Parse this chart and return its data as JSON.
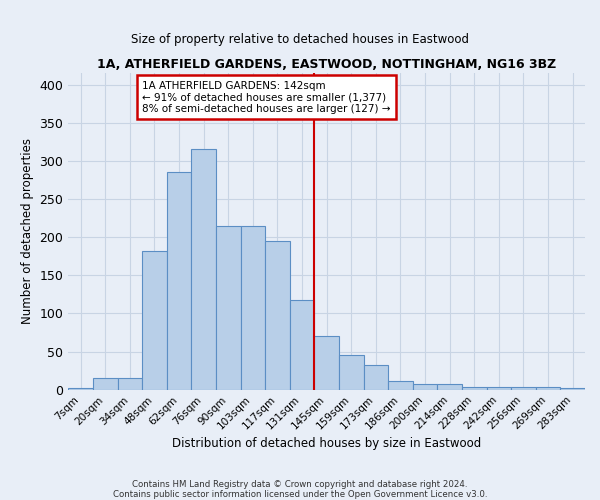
{
  "title1": "1A, ATHERFIELD GARDENS, EASTWOOD, NOTTINGHAM, NG16 3BZ",
  "title2": "Size of property relative to detached houses in Eastwood",
  "xlabel": "Distribution of detached houses by size in Eastwood",
  "ylabel": "Number of detached properties",
  "bin_labels": [
    "7sqm",
    "20sqm",
    "34sqm",
    "48sqm",
    "62sqm",
    "76sqm",
    "90sqm",
    "103sqm",
    "117sqm",
    "131sqm",
    "145sqm",
    "159sqm",
    "173sqm",
    "186sqm",
    "200sqm",
    "214sqm",
    "228sqm",
    "242sqm",
    "256sqm",
    "269sqm",
    "283sqm"
  ],
  "bar_heights": [
    2,
    15,
    15,
    182,
    285,
    315,
    215,
    215,
    195,
    118,
    70,
    45,
    33,
    11,
    8,
    7,
    4,
    4,
    4,
    3,
    2
  ],
  "bar_color": "#b8cfe8",
  "bar_edge_color": "#5b8ec4",
  "bg_color": "#e8eef7",
  "grid_color": "#d0d8e8",
  "vline_color": "#cc0000",
  "annotation_title": "1A ATHERFIELD GARDENS: 142sqm",
  "annotation_line1": "← 91% of detached houses are smaller (1,377)",
  "annotation_line2": "8% of semi-detached houses are larger (127) →",
  "annotation_box_color": "#ffffff",
  "annotation_box_edge": "#cc0000",
  "footer_line1": "Contains HM Land Registry data © Crown copyright and database right 2024.",
  "footer_line2": "Contains public sector information licensed under the Open Government Licence v3.0.",
  "ylim": [
    0,
    415
  ],
  "yticks": [
    0,
    50,
    100,
    150,
    200,
    250,
    300,
    350,
    400
  ],
  "vline_bar_index": 10
}
